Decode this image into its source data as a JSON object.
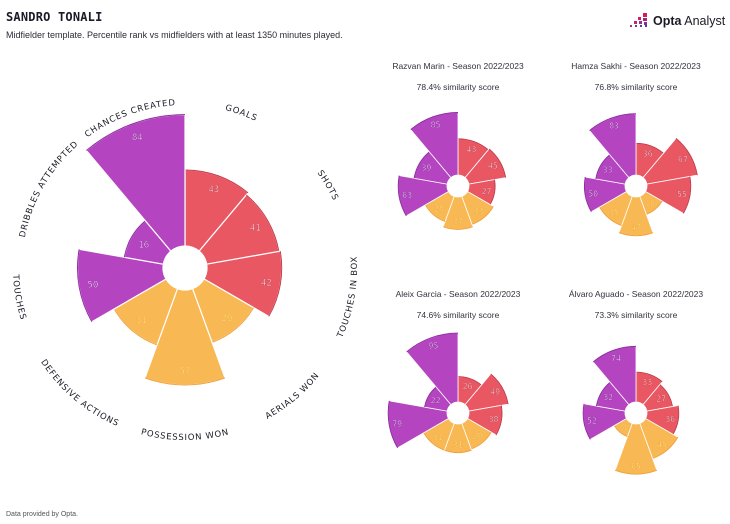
{
  "header": {
    "title": "SANDRO TONALI",
    "subtitle": "Midfielder template. Percentile rank vs midfielders with at least 1350 minutes played."
  },
  "logo": {
    "brand_bold": "Opta",
    "brand_rest": " Analyst"
  },
  "footer": {
    "text": "Data provided by Opta."
  },
  "colors": {
    "attack": "#e95763",
    "defence": "#f8b853",
    "possession": "#b444c0",
    "attack_label": "#ffffff",
    "defence_label": "#fff3a0",
    "possession_label": "#ffffff"
  },
  "chart_data": [
    {
      "type": "polar-bar",
      "title": "Sandro Tonali",
      "player": "Sandro Tonali",
      "categories": [
        "Goals",
        "Shots",
        "Touches in box",
        "Aerials won",
        "Possession won",
        "Defensive actions",
        "Touches",
        "Dribbles attempted",
        "Chances created"
      ],
      "category_labels": [
        "GOALS",
        "SHOTS",
        "TOUCHES IN BOX",
        "AERIALS WON",
        "POSSESSION WON",
        "DEFENSIVE ACTIONS",
        "TOUCHES",
        "DRIBBLES ATTEMPTED",
        "CHANCES CREATED"
      ],
      "groups": [
        "attack",
        "attack",
        "attack",
        "defence",
        "defence",
        "defence",
        "possession",
        "possession",
        "possession"
      ],
      "values": [
        43,
        41,
        42,
        29,
        57,
        31,
        50,
        16,
        84
      ],
      "range": [
        0,
        100
      ]
    },
    {
      "type": "polar-bar",
      "title": "Razvan Marin - Season 2022/2023",
      "similarity": "78.4% similarity score",
      "categories": [
        "Goals",
        "Shots",
        "Touches in box",
        "Aerials won",
        "Possession won",
        "Defensive actions",
        "Touches",
        "Dribbles attempted",
        "Chances created"
      ],
      "groups": [
        "attack",
        "attack",
        "attack",
        "defence",
        "defence",
        "defence",
        "possession",
        "possession",
        "possession"
      ],
      "values": [
        43,
        45,
        27,
        33,
        37,
        28,
        63,
        39,
        85
      ],
      "range": [
        0,
        100
      ]
    },
    {
      "type": "polar-bar",
      "title": "Hamza Sakhi - Season 2022/2023",
      "similarity": "76.8% similarity score",
      "categories": [
        "Goals",
        "Shots",
        "Touches in box",
        "Aerials won",
        "Possession won",
        "Defensive actions",
        "Touches",
        "Dribbles attempted",
        "Chances created"
      ],
      "groups": [
        "attack",
        "attack",
        "attack",
        "defence",
        "defence",
        "defence",
        "possession",
        "possession",
        "possession"
      ],
      "values": [
        36,
        67,
        55,
        16,
        47,
        35,
        50,
        33,
        83
      ],
      "range": [
        0,
        100
      ]
    },
    {
      "type": "polar-bar",
      "title": "Aleix Garcia - Season 2022/2023",
      "similarity": "74.6% similarity score",
      "categories": [
        "Goals",
        "Shots",
        "Touches in box",
        "Aerials won",
        "Possession won",
        "Defensive actions",
        "Touches",
        "Dribbles attempted",
        "Chances created"
      ],
      "groups": [
        "attack",
        "attack",
        "attack",
        "defence",
        "defence",
        "defence",
        "possession",
        "possession",
        "possession"
      ],
      "values": [
        26,
        49,
        38,
        29,
        31,
        31,
        79,
        22,
        95
      ],
      "range": [
        0,
        100
      ]
    },
    {
      "type": "polar-bar",
      "title": "Álvaro Aguado - Season 2022/2023",
      "similarity": "73.3% similarity score",
      "categories": [
        "Goals",
        "Shots",
        "Touches in box",
        "Aerials won",
        "Possession won",
        "Defensive actions",
        "Touches",
        "Dribbles attempted",
        "Chances created"
      ],
      "groups": [
        "attack",
        "attack",
        "attack",
        "defence",
        "defence",
        "defence",
        "possession",
        "possession",
        "possession"
      ],
      "values": [
        33,
        27,
        36,
        45,
        65,
        8,
        52,
        32,
        74
      ],
      "range": [
        0,
        100
      ]
    }
  ]
}
